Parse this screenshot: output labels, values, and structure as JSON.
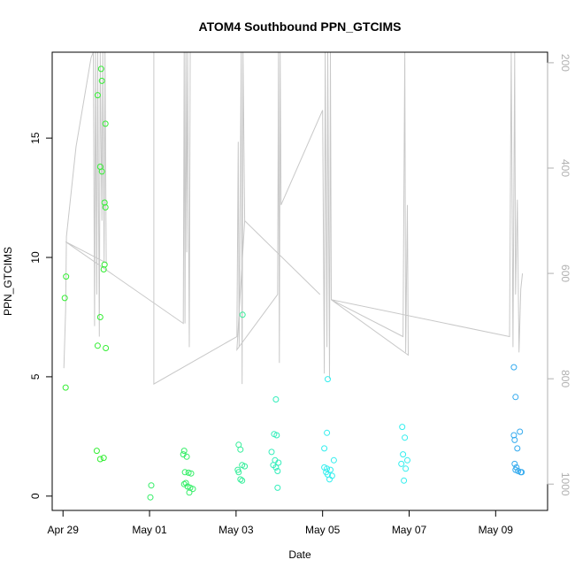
{
  "chart_data": {
    "type": "scatter",
    "title": "ATOM4 Southbound PPN_GTCIMS",
    "xlabel": "Date",
    "ylabel": "PPN_GTCIMS",
    "y_right_label": "",
    "xlim": [
      -0.25,
      11.2
    ],
    "ylim": [
      -0.6,
      18.6
    ],
    "y2lim": [
      1050,
      180
    ],
    "x_ticks": [
      {
        "value": 0,
        "label": "Apr 29"
      },
      {
        "value": 2,
        "label": "May 01"
      },
      {
        "value": 4,
        "label": "May 03"
      },
      {
        "value": 6,
        "label": "May 05"
      },
      {
        "value": 8,
        "label": "May 07"
      },
      {
        "value": 10,
        "label": "May 09"
      }
    ],
    "y_ticks": [
      0,
      5,
      10,
      15
    ],
    "y2_ticks": [
      200,
      400,
      600,
      800,
      1000
    ],
    "grid": false,
    "point_series": [
      {
        "color": "#33ee33",
        "points": [
          [
            0.04,
            8.3
          ],
          [
            0.07,
            9.2
          ],
          [
            0.06,
            4.55
          ],
          [
            0.8,
            16.8
          ],
          [
            0.88,
            17.9
          ],
          [
            0.9,
            17.4
          ],
          [
            0.98,
            15.6
          ],
          [
            0.86,
            13.8
          ],
          [
            0.9,
            13.6
          ],
          [
            0.96,
            12.3
          ],
          [
            0.98,
            12.1
          ],
          [
            0.96,
            9.7
          ],
          [
            0.94,
            9.5
          ],
          [
            0.86,
            7.5
          ],
          [
            0.8,
            6.3
          ],
          [
            0.99,
            6.2
          ],
          [
            0.78,
            1.9
          ],
          [
            0.86,
            1.55
          ],
          [
            0.94,
            1.6
          ]
        ]
      },
      {
        "color": "#33ee66",
        "points": [
          [
            2.04,
            0.45
          ],
          [
            2.02,
            -0.05
          ],
          [
            2.78,
            1.75
          ],
          [
            2.8,
            1.9
          ],
          [
            2.86,
            1.65
          ],
          [
            2.82,
            1.0
          ],
          [
            2.9,
            0.98
          ],
          [
            2.96,
            0.95
          ],
          [
            2.8,
            0.5
          ],
          [
            2.88,
            0.4
          ],
          [
            2.94,
            0.35
          ],
          [
            2.92,
            0.15
          ],
          [
            3.0,
            0.3
          ],
          [
            2.84,
            0.55
          ]
        ]
      },
      {
        "color": "#33ee99",
        "points": [
          [
            4.06,
            2.15
          ],
          [
            4.1,
            1.95
          ],
          [
            4.04,
            1.1
          ],
          [
            4.14,
            1.3
          ],
          [
            4.2,
            1.25
          ],
          [
            4.06,
            1.0
          ],
          [
            4.1,
            0.7
          ],
          [
            4.14,
            0.65
          ],
          [
            4.15,
            7.6
          ]
        ]
      },
      {
        "color": "#33eebb",
        "points": [
          [
            4.92,
            4.05
          ],
          [
            4.88,
            2.6
          ],
          [
            4.94,
            2.55
          ],
          [
            4.82,
            1.85
          ],
          [
            4.9,
            1.5
          ],
          [
            4.98,
            1.4
          ],
          [
            4.86,
            1.3
          ],
          [
            4.96,
            1.05
          ],
          [
            4.92,
            1.2
          ],
          [
            4.96,
            0.35
          ]
        ]
      },
      {
        "color": "#33eeee",
        "points": [
          [
            6.12,
            4.9
          ],
          [
            6.1,
            2.65
          ],
          [
            6.04,
            2.0
          ],
          [
            6.26,
            1.5
          ],
          [
            6.04,
            1.2
          ],
          [
            6.1,
            1.15
          ],
          [
            6.18,
            1.1
          ],
          [
            6.12,
            0.9
          ],
          [
            6.22,
            0.85
          ],
          [
            6.16,
            0.7
          ],
          [
            6.08,
            1.0
          ],
          [
            7.84,
            2.9
          ],
          [
            7.9,
            2.45
          ],
          [
            7.86,
            1.75
          ],
          [
            7.96,
            1.5
          ],
          [
            7.82,
            1.35
          ],
          [
            7.92,
            1.15
          ],
          [
            7.88,
            0.65
          ]
        ]
      },
      {
        "color": "#33aaee",
        "points": [
          [
            10.42,
            5.4
          ],
          [
            10.46,
            4.15
          ],
          [
            10.42,
            2.55
          ],
          [
            10.44,
            2.35
          ],
          [
            10.56,
            2.7
          ],
          [
            10.5,
            2.0
          ],
          [
            10.44,
            1.35
          ],
          [
            10.48,
            1.2
          ],
          [
            10.52,
            1.05
          ],
          [
            10.58,
            1.0
          ],
          [
            10.6,
            1.0
          ],
          [
            10.46,
            1.1
          ]
        ]
      }
    ],
    "line_series": [
      {
        "name": "",
        "color": "#c8c8c8",
        "points": [
          [
            0.02,
            780
          ],
          [
            0.06,
            670
          ],
          [
            0.08,
            530
          ],
          [
            0.3,
            360
          ],
          [
            0.65,
            190
          ],
          [
            0.7,
            150
          ],
          [
            0.73,
            700
          ],
          [
            0.75,
            150
          ],
          [
            0.78,
            640
          ],
          [
            0.8,
            150
          ],
          [
            0.84,
            720
          ],
          [
            0.86,
            150
          ],
          [
            0.9,
            500
          ],
          [
            0.92,
            150
          ],
          [
            0.95,
            580
          ],
          [
            0.97,
            160
          ],
          [
            1.0,
            580
          ],
          [
            0.06,
            540
          ],
          [
            2.78,
            695
          ],
          [
            2.8,
            150
          ],
          [
            2.82,
            695
          ],
          [
            2.84,
            150
          ],
          [
            2.86,
            560
          ],
          [
            2.88,
            150
          ],
          [
            2.92,
            740
          ],
          [
            2.94,
            150
          ],
          [
            2.1,
            150
          ],
          [
            2.1,
            810
          ],
          [
            4.02,
            720
          ],
          [
            4.05,
            350
          ],
          [
            4.07,
            740
          ],
          [
            4.1,
            380
          ],
          [
            4.12,
            150
          ],
          [
            4.14,
            810
          ],
          [
            4.16,
            150
          ],
          [
            4.2,
            500
          ],
          [
            5.94,
            640
          ],
          [
            4.2,
            500
          ],
          [
            4.02,
            745
          ],
          [
            4.96,
            640
          ],
          [
            4.98,
            150
          ],
          [
            5.0,
            770
          ],
          [
            5.02,
            150
          ],
          [
            5.04,
            470
          ],
          [
            6.0,
            290
          ],
          [
            6.04,
            790
          ],
          [
            6.06,
            150
          ],
          [
            6.1,
            740
          ],
          [
            6.12,
            150
          ],
          [
            6.16,
            800
          ],
          [
            6.18,
            150
          ],
          [
            6.2,
            650
          ],
          [
            7.86,
            720
          ],
          [
            7.9,
            150
          ],
          [
            7.92,
            750
          ],
          [
            7.96,
            470
          ],
          [
            7.98,
            755
          ],
          [
            6.2,
            650
          ],
          [
            10.32,
            720
          ],
          [
            10.36,
            150
          ],
          [
            10.4,
            740
          ],
          [
            10.44,
            150
          ],
          [
            10.46,
            640
          ],
          [
            10.5,
            460
          ],
          [
            10.54,
            750
          ],
          [
            10.58,
            630
          ],
          [
            10.62,
            600
          ]
        ]
      }
    ]
  }
}
